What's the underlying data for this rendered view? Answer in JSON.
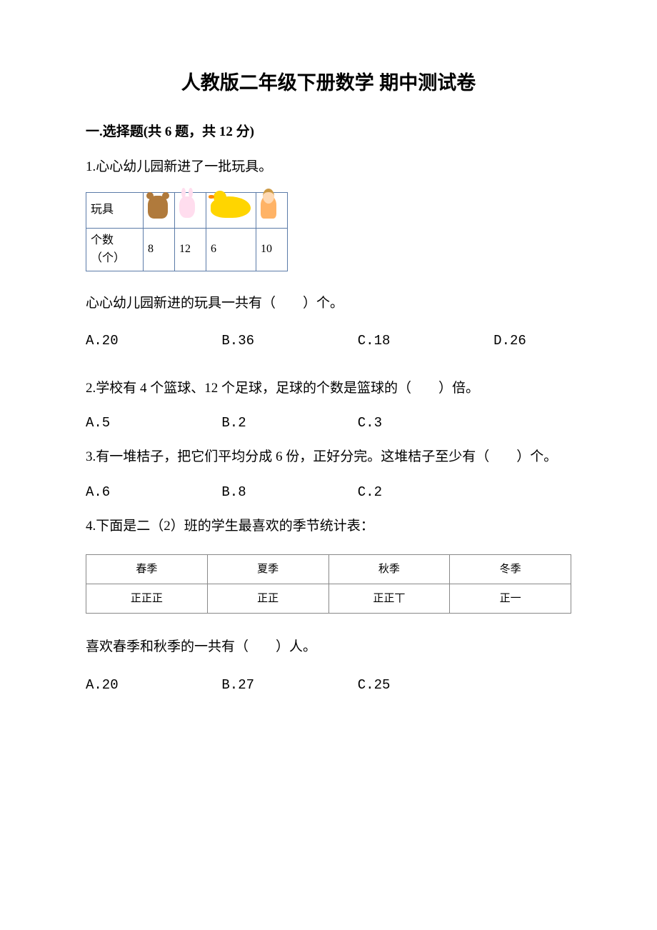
{
  "title": "人教版二年级下册数学 期中测试卷",
  "section1": {
    "header": "一.选择题(共 6 题，共 12 分)",
    "q1": {
      "text": "1.心心幼儿园新进了一批玩具。",
      "table": {
        "row1_label": "玩具",
        "row2_label": "个数（个）",
        "counts": [
          "8",
          "12",
          "6",
          "10"
        ]
      },
      "sub_text": "心心幼儿园新进的玩具一共有（　　）个。",
      "options": [
        "A.20",
        "B.36",
        "C.18",
        "D.26"
      ]
    },
    "q2": {
      "text": "2.学校有 4 个篮球、12 个足球，足球的个数是篮球的（　　）倍。",
      "options": [
        "A.5",
        "B.2",
        "C.3"
      ]
    },
    "q3": {
      "text": "3.有一堆桔子，把它们平均分成 6 份，正好分完。这堆桔子至少有（　　）个。",
      "options": [
        "A.6",
        "B.8",
        "C.2"
      ]
    },
    "q4": {
      "text": "4.下面是二（2）班的学生最喜欢的季节统计表：",
      "table": {
        "headers": [
          "春季",
          "夏季",
          "秋季",
          "冬季"
        ],
        "tallies": [
          "正正正",
          "正正",
          "正正丅",
          "正一"
        ]
      },
      "sub_text": "喜欢春季和秋季的一共有（　　）人。",
      "options": [
        "A.20",
        "B.27",
        "C.25"
      ]
    }
  },
  "colors": {
    "text": "#000000",
    "background": "#ffffff",
    "table_border": "#5b7ba8",
    "season_border": "#888888"
  }
}
